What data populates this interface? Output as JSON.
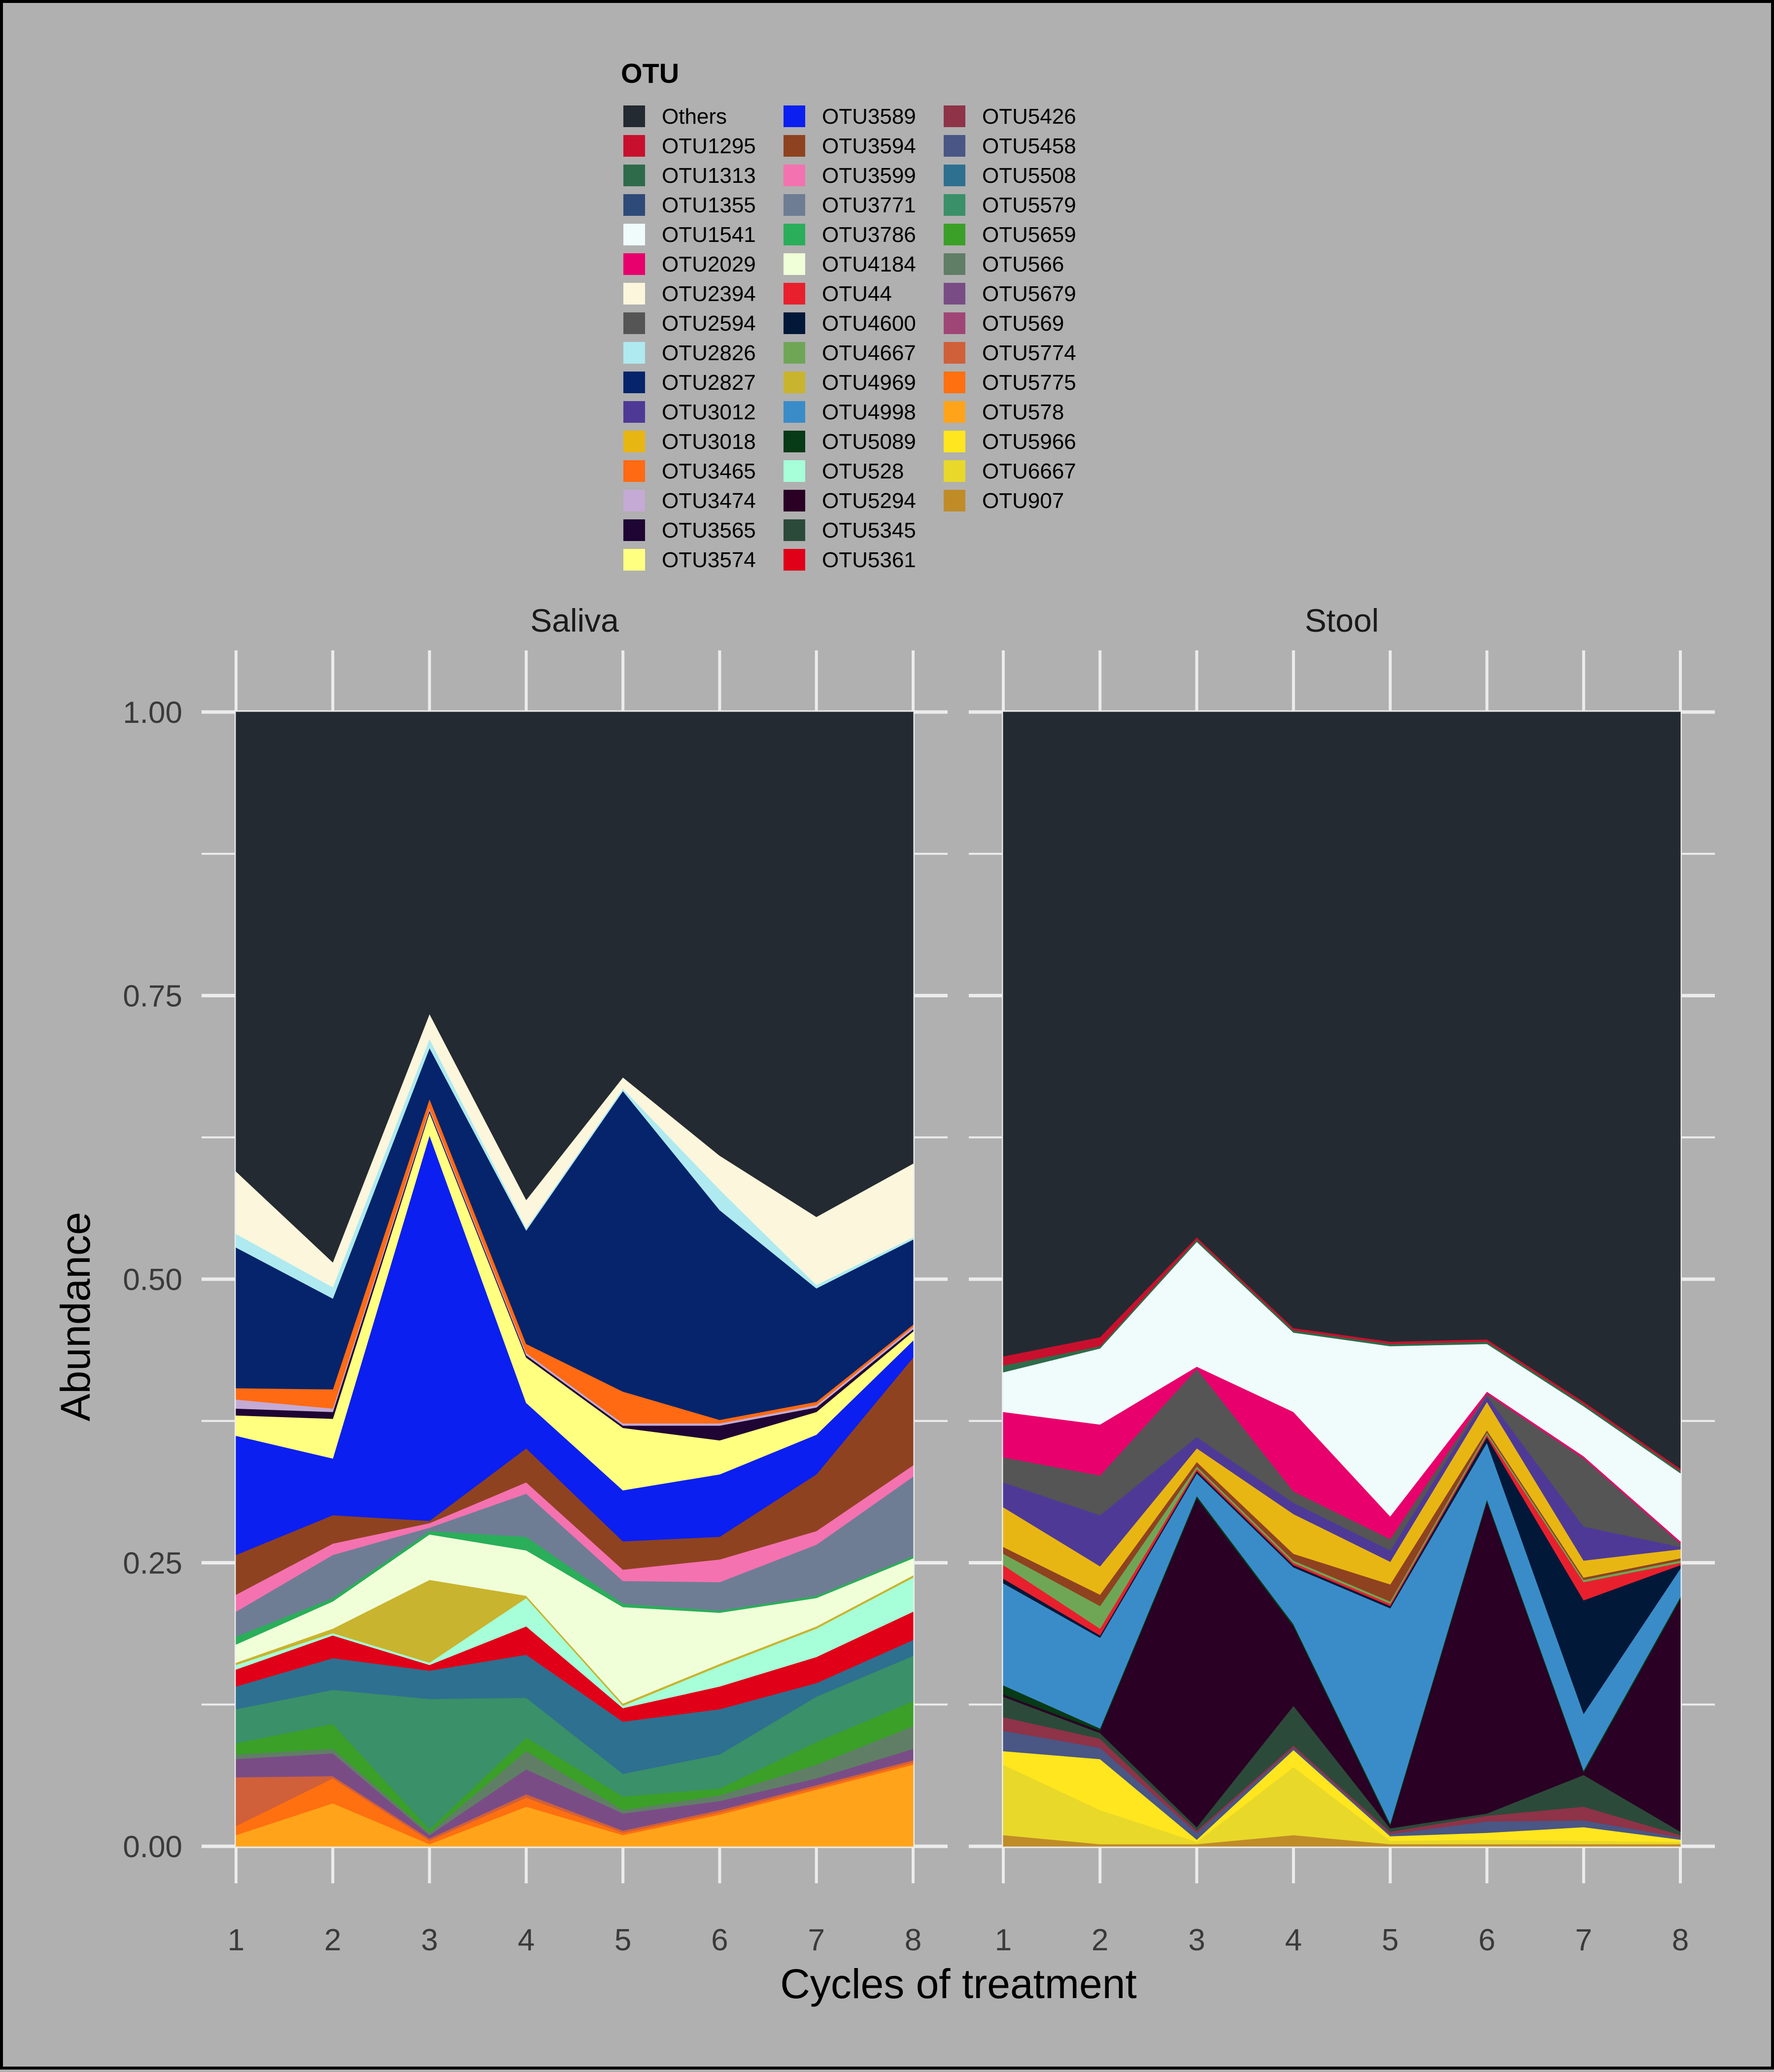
{
  "legend": {
    "title": "OTU",
    "entries": [
      {
        "label": "Others",
        "color": "#242a31"
      },
      {
        "label": "OTU1295",
        "color": "#c8102e"
      },
      {
        "label": "OTU1313",
        "color": "#2e6b4a"
      },
      {
        "label": "OTU1355",
        "color": "#2e4a78"
      },
      {
        "label": "OTU1541",
        "color": "#f0fbfc"
      },
      {
        "label": "OTU2029",
        "color": "#e8006c"
      },
      {
        "label": "OTU2394",
        "color": "#fbf6dc"
      },
      {
        "label": "OTU2594",
        "color": "#555555"
      },
      {
        "label": "OTU2826",
        "color": "#aeeaf0"
      },
      {
        "label": "OTU2827",
        "color": "#05246b"
      },
      {
        "label": "OTU3012",
        "color": "#4e3a96"
      },
      {
        "label": "OTU3018",
        "color": "#e8b613"
      },
      {
        "label": "OTU3465",
        "color": "#ff6a13"
      },
      {
        "label": "OTU3474",
        "color": "#c4aad4"
      },
      {
        "label": "OTU3565",
        "color": "#1e0533"
      },
      {
        "label": "OTU3574",
        "color": "#ffff80"
      },
      {
        "label": "OTU3589",
        "color": "#0b1ff0"
      },
      {
        "label": "OTU3594",
        "color": "#8f4220"
      },
      {
        "label": "OTU3599",
        "color": "#f472b0"
      },
      {
        "label": "OTU3771",
        "color": "#6e7d94"
      },
      {
        "label": "OTU3786",
        "color": "#2aae5a"
      },
      {
        "label": "OTU4184",
        "color": "#f0ffd8"
      },
      {
        "label": "OTU44",
        "color": "#e8202e"
      },
      {
        "label": "OTU4600",
        "color": "#021838"
      },
      {
        "label": "OTU4667",
        "color": "#6fa656"
      },
      {
        "label": "OTU4969",
        "color": "#c8b42e"
      },
      {
        "label": "OTU4998",
        "color": "#3a8cc8"
      },
      {
        "label": "OTU5089",
        "color": "#073a17"
      },
      {
        "label": "OTU528",
        "color": "#a6ffd8"
      },
      {
        "label": "OTU5294",
        "color": "#2a0024"
      },
      {
        "label": "OTU5345",
        "color": "#2c4a3a"
      },
      {
        "label": "OTU5361",
        "color": "#e00018"
      },
      {
        "label": "OTU5426",
        "color": "#8e3348"
      },
      {
        "label": "OTU5458",
        "color": "#4a5684"
      },
      {
        "label": "OTU5508",
        "color": "#2e7090"
      },
      {
        "label": "OTU5579",
        "color": "#3a9068"
      },
      {
        "label": "OTU5659",
        "color": "#3aa028"
      },
      {
        "label": "OTU566",
        "color": "#607e66"
      },
      {
        "label": "OTU5679",
        "color": "#7a4c86"
      },
      {
        "label": "OTU569",
        "color": "#a04676"
      },
      {
        "label": "OTU5774",
        "color": "#d0603a"
      },
      {
        "label": "OTU5775",
        "color": "#ff7010"
      },
      {
        "label": "OTU578",
        "color": "#ffa41a"
      },
      {
        "label": "OTU5966",
        "color": "#ffe61e"
      },
      {
        "label": "OTU6667",
        "color": "#e8d82a"
      },
      {
        "label": "OTU907",
        "color": "#c08c28"
      }
    ]
  },
  "chart_data": [
    {
      "type": "area",
      "title": "Saliva",
      "xlabel": "Cycles of treatment",
      "ylabel": "Abundance",
      "x": [
        1,
        2,
        3,
        4,
        5,
        6,
        7,
        8
      ],
      "ylim": [
        0,
        1
      ],
      "yticks": [
        "0.00",
        "0.25",
        "0.50",
        "0.75",
        "1.00"
      ],
      "stacking": "bottom-to-top",
      "series": [
        {
          "name": "OTU578",
          "values": [
            0.01,
            0.038,
            0.002,
            0.035,
            0.01,
            0.028,
            0.05,
            0.072
          ]
        },
        {
          "name": "OTU5775",
          "values": [
            0.008,
            0.022,
            0.003,
            0.008,
            0.002,
            0.002,
            0.002,
            0.002
          ]
        },
        {
          "name": "OTU5774",
          "values": [
            0.043,
            0.002,
            0.002,
            0.003,
            0.002,
            0.002,
            0.002,
            0.002
          ]
        },
        {
          "name": "OTU5679",
          "values": [
            0.016,
            0.02,
            0.003,
            0.022,
            0.015,
            0.008,
            0.006,
            0.01
          ]
        },
        {
          "name": "OTU566",
          "values": [
            0.004,
            0.004,
            0.002,
            0.016,
            0.003,
            0.005,
            0.012,
            0.02
          ]
        },
        {
          "name": "OTU5659",
          "values": [
            0.01,
            0.022,
            0.003,
            0.012,
            0.012,
            0.006,
            0.02,
            0.022
          ]
        },
        {
          "name": "OTU5579",
          "values": [
            0.03,
            0.03,
            0.115,
            0.035,
            0.02,
            0.03,
            0.04,
            0.04
          ]
        },
        {
          "name": "OTU5508",
          "values": [
            0.02,
            0.028,
            0.025,
            0.038,
            0.046,
            0.04,
            0.012,
            0.014
          ]
        },
        {
          "name": "OTU5361",
          "values": [
            0.015,
            0.02,
            0.005,
            0.025,
            0.012,
            0.02,
            0.023,
            0.025
          ]
        },
        {
          "name": "OTU528",
          "values": [
            0.004,
            0.002,
            0.002,
            0.025,
            0.002,
            0.018,
            0.025,
            0.03
          ]
        },
        {
          "name": "OTU4969",
          "values": [
            0.002,
            0.004,
            0.073,
            0.002,
            0.002,
            0.002,
            0.002,
            0.002
          ]
        },
        {
          "name": "OTU4184",
          "values": [
            0.016,
            0.024,
            0.04,
            0.04,
            0.085,
            0.045,
            0.025,
            0.015
          ]
        },
        {
          "name": "OTU3786",
          "values": [
            0.007,
            0.003,
            0.003,
            0.012,
            0.003,
            0.002,
            0.002,
            0.002
          ]
        },
        {
          "name": "OTU3771",
          "values": [
            0.022,
            0.038,
            0.003,
            0.038,
            0.02,
            0.025,
            0.045,
            0.07
          ]
        },
        {
          "name": "OTU3599",
          "values": [
            0.015,
            0.01,
            0.004,
            0.01,
            0.01,
            0.02,
            0.012,
            0.01
          ]
        },
        {
          "name": "OTU3594",
          "values": [
            0.035,
            0.025,
            0.002,
            0.03,
            0.025,
            0.02,
            0.05,
            0.095
          ]
        },
        {
          "name": "OTU3589",
          "values": [
            0.105,
            0.05,
            0.34,
            0.04,
            0.045,
            0.055,
            0.035,
            0.015
          ]
        },
        {
          "name": "OTU3574",
          "values": [
            0.018,
            0.035,
            0.02,
            0.04,
            0.055,
            0.03,
            0.02,
            0.008
          ]
        },
        {
          "name": "OTU3565",
          "values": [
            0.006,
            0.006,
            0.002,
            0.002,
            0.002,
            0.013,
            0.004,
            0.002
          ]
        },
        {
          "name": "OTU3474",
          "values": [
            0.008,
            0.003,
            0.002,
            0.002,
            0.002,
            0.002,
            0.002,
            0.002
          ]
        },
        {
          "name": "OTU3465",
          "values": [
            0.01,
            0.017,
            0.008,
            0.008,
            0.028,
            0.003,
            0.003,
            0.002
          ]
        },
        {
          "name": "OTU2827",
          "values": [
            0.124,
            0.08,
            0.045,
            0.1,
            0.265,
            0.185,
            0.1,
            0.075
          ]
        },
        {
          "name": "OTU2826",
          "values": [
            0.012,
            0.01,
            0.008,
            0.002,
            0.002,
            0.018,
            0.003,
            0.002
          ]
        },
        {
          "name": "OTU2394",
          "values": [
            0.055,
            0.022,
            0.022,
            0.025,
            0.01,
            0.03,
            0.06,
            0.065
          ]
        },
        {
          "name": "Others",
          "values": [
            0.408,
            0.49,
            0.28,
            0.434,
            0.33,
            0.423,
            0.46,
            0.43
          ]
        }
      ]
    },
    {
      "type": "area",
      "title": "Stool",
      "xlabel": "Cycles of treatment",
      "ylabel": "Abundance",
      "x": [
        1,
        2,
        3,
        4,
        5,
        6,
        7,
        8
      ],
      "ylim": [
        0,
        1
      ],
      "yticks": [
        "0.00",
        "0.25",
        "0.50",
        "0.75",
        "1.00"
      ],
      "stacking": "bottom-to-top",
      "series": [
        {
          "name": "OTU907",
          "values": [
            0.01,
            0.002,
            0.002,
            0.01,
            0.002,
            0.002,
            0.002,
            0.002
          ]
        },
        {
          "name": "OTU6667",
          "values": [
            0.062,
            0.03,
            0.002,
            0.06,
            0.003,
            0.004,
            0.003,
            0.002
          ]
        },
        {
          "name": "OTU5966",
          "values": [
            0.012,
            0.045,
            0.002,
            0.015,
            0.004,
            0.006,
            0.012,
            0.002
          ]
        },
        {
          "name": "OTU5458",
          "values": [
            0.018,
            0.01,
            0.006,
            0.002,
            0.002,
            0.01,
            0.006,
            0.002
          ]
        },
        {
          "name": "OTU5426",
          "values": [
            0.012,
            0.008,
            0.002,
            0.002,
            0.002,
            0.005,
            0.012,
            0.002
          ]
        },
        {
          "name": "OTU5345",
          "values": [
            0.018,
            0.005,
            0.003,
            0.035,
            0.003,
            0.002,
            0.028,
            0.003
          ]
        },
        {
          "name": "OTU5294",
          "values": [
            0.002,
            0.002,
            0.29,
            0.07,
            0.002,
            0.275,
            0.002,
            0.205
          ]
        },
        {
          "name": "OTU5089",
          "values": [
            0.008,
            0.002,
            0.002,
            0.002,
            0.002,
            0.002,
            0.002,
            0.002
          ]
        },
        {
          "name": "OTU4998",
          "values": [
            0.09,
            0.08,
            0.02,
            0.05,
            0.19,
            0.05,
            0.05,
            0.025
          ]
        },
        {
          "name": "OTU4600",
          "values": [
            0.004,
            0.002,
            0.002,
            0.002,
            0.002,
            0.005,
            0.1,
            0.003
          ]
        },
        {
          "name": "OTU44",
          "values": [
            0.012,
            0.006,
            0.002,
            0.002,
            0.002,
            0.002,
            0.016,
            0.002
          ]
        },
        {
          "name": "OTU4667",
          "values": [
            0.01,
            0.02,
            0.002,
            0.002,
            0.002,
            0.002,
            0.002,
            0.002
          ]
        },
        {
          "name": "OTU3594",
          "values": [
            0.006,
            0.01,
            0.004,
            0.006,
            0.015,
            0.002,
            0.002,
            0.002
          ]
        },
        {
          "name": "OTU3018",
          "values": [
            0.035,
            0.025,
            0.012,
            0.035,
            0.02,
            0.025,
            0.015,
            0.008
          ]
        },
        {
          "name": "OTU3012",
          "values": [
            0.022,
            0.045,
            0.01,
            0.01,
            0.01,
            0.005,
            0.03,
            0.002
          ]
        },
        {
          "name": "OTU2594",
          "values": [
            0.022,
            0.035,
            0.06,
            0.01,
            0.01,
            0.002,
            0.06,
            0.003
          ]
        },
        {
          "name": "OTU2029",
          "values": [
            0.04,
            0.045,
            0.002,
            0.07,
            0.02,
            0.002,
            0.002,
            0.002
          ]
        },
        {
          "name": "OTU1541",
          "values": [
            0.035,
            0.067,
            0.11,
            0.07,
            0.15,
            0.042,
            0.044,
            0.06
          ]
        },
        {
          "name": "OTU1313",
          "values": [
            0.006,
            0.002,
            0.002,
            0.002,
            0.002,
            0.002,
            0.002,
            0.002
          ]
        },
        {
          "name": "OTU1295",
          "values": [
            0.008,
            0.008,
            0.002,
            0.002,
            0.002,
            0.002,
            0.002,
            0.002
          ]
        },
        {
          "name": "Others",
          "values": [
            0.588,
            0.586,
            0.474,
            0.559,
            0.586,
            0.567,
            0.614,
            0.686
          ]
        }
      ]
    }
  ]
}
